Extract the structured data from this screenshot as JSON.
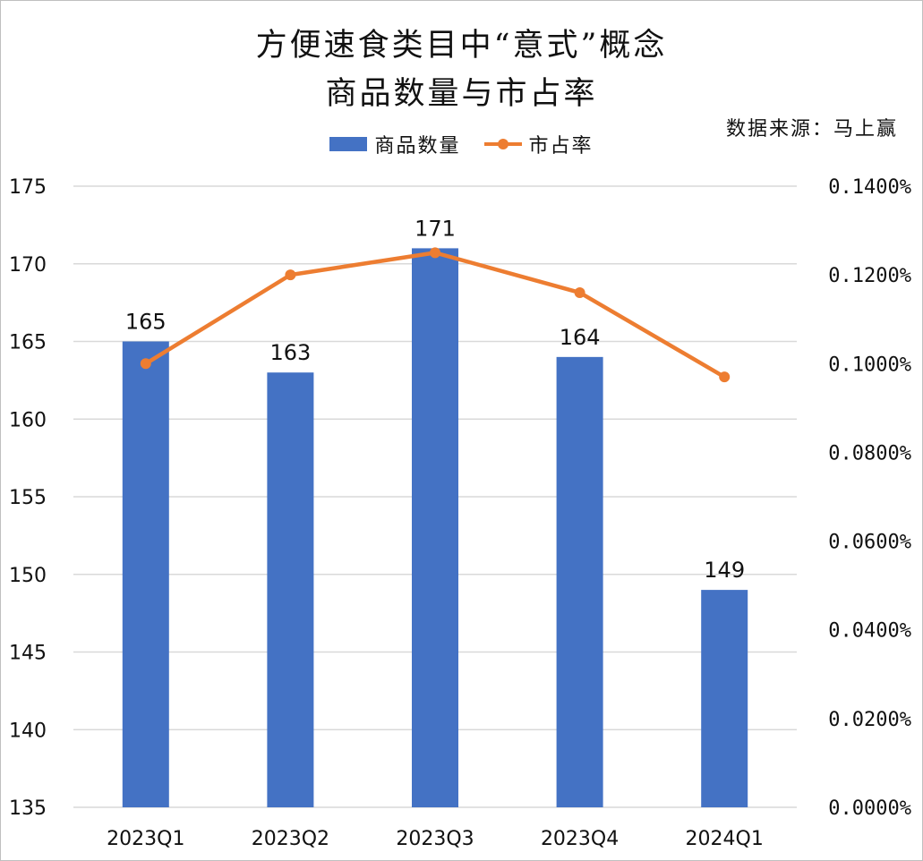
{
  "title_line1": "方便速食类目中“意式”概念",
  "title_line2": "商品数量与市占率",
  "source": "数据来源：马上赢",
  "colors": {
    "bar": "#4472C4",
    "line": "#ED7D31",
    "grid": "#d9d9d9"
  },
  "chart_data": {
    "type": "bar",
    "title": "方便速食类目中“意式”概念商品数量与市占率",
    "categories": [
      "2023Q1",
      "2023Q2",
      "2023Q3",
      "2023Q4",
      "2024Q1"
    ],
    "series": [
      {
        "name": "商品数量",
        "type": "bar",
        "axis": "left",
        "values": [
          165,
          163,
          171,
          164,
          149
        ],
        "labels": [
          "165",
          "163",
          "171",
          "164",
          "149"
        ]
      },
      {
        "name": "市占率",
        "type": "line",
        "axis": "right",
        "values": [
          0.001,
          0.0012,
          0.00125,
          0.00116,
          0.00097
        ]
      }
    ],
    "y_left": {
      "min": 135,
      "max": 175,
      "step": 5,
      "ticks": [
        "135",
        "140",
        "145",
        "150",
        "155",
        "160",
        "165",
        "170",
        "175"
      ]
    },
    "y_right": {
      "min": 0,
      "max": 0.0014,
      "step": 0.0002,
      "ticks": [
        "0.0000%",
        "0.0200%",
        "0.0400%",
        "0.0600%",
        "0.0800%",
        "0.1000%",
        "0.1200%",
        "0.1400%"
      ]
    },
    "legend": "top-center",
    "grid": true
  }
}
